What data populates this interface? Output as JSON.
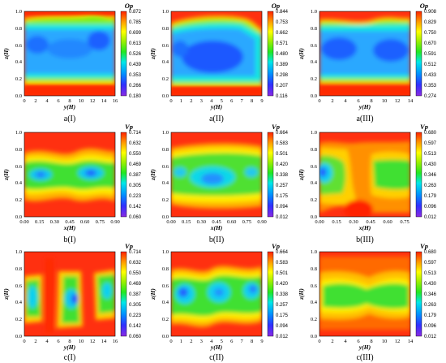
{
  "chart_data": [
    {
      "type": "heatmap",
      "caption": "a(I)",
      "xlabel": "y(H)",
      "ylabel": "z(H)",
      "colorbar_title": "Op",
      "x_ticks": [
        "0",
        "2",
        "4",
        "6",
        "8",
        "10",
        "12",
        "14",
        "16"
      ],
      "xlim": [
        0,
        16
      ],
      "y_ticks": [
        "0.0",
        "0.2",
        "0.4",
        "0.6",
        "0.8",
        "1.0"
      ],
      "ylim": [
        0,
        1.0
      ],
      "colorbar_ticks": [
        "0.872",
        "0.785",
        "0.699",
        "0.613",
        "0.526",
        "0.439",
        "0.353",
        "0.266",
        "0.180"
      ],
      "clim": [
        0.18,
        0.872
      ]
    },
    {
      "type": "heatmap",
      "caption": "a(II)",
      "xlabel": "y(H)",
      "ylabel": "z(H)",
      "colorbar_title": "Op",
      "x_ticks": [
        "0",
        "1",
        "2",
        "3",
        "4",
        "5",
        "6",
        "7",
        "8",
        "9"
      ],
      "xlim": [
        0,
        9
      ],
      "y_ticks": [
        "0.0",
        "0.2",
        "0.4",
        "0.6",
        "0.8",
        "1.0"
      ],
      "ylim": [
        0,
        1.0
      ],
      "colorbar_ticks": [
        "0.844",
        "0.753",
        "0.662",
        "0.571",
        "0.480",
        "0.389",
        "0.298",
        "0.207",
        "0.116"
      ],
      "clim": [
        0.116,
        0.844
      ]
    },
    {
      "type": "heatmap",
      "caption": "a(III)",
      "xlabel": "y(H)",
      "ylabel": "z(H)",
      "colorbar_title": "Op",
      "x_ticks": [
        "0",
        "2",
        "4",
        "6",
        "8",
        "10",
        "12",
        "14"
      ],
      "xlim": [
        0,
        14
      ],
      "y_ticks": [
        "0.0",
        "0.2",
        "0.4",
        "0.6",
        "0.8",
        "1.0"
      ],
      "ylim": [
        0,
        1.0
      ],
      "colorbar_ticks": [
        "0.908",
        "0.829",
        "0.750",
        "0.670",
        "0.591",
        "0.512",
        "0.433",
        "0.353",
        "0.274"
      ],
      "clim": [
        0.274,
        0.908
      ]
    },
    {
      "type": "heatmap",
      "caption": "b(I)",
      "xlabel": "x(H)",
      "ylabel": "z(H)",
      "colorbar_title": "Vp",
      "x_ticks": [
        "0.00",
        "0.15",
        "0.30",
        "0.45",
        "0.60",
        "0.75",
        "0.90"
      ],
      "xlim": [
        0,
        0.9
      ],
      "y_ticks": [
        "0.0",
        "0.2",
        "0.4",
        "0.6",
        "0.8",
        "1.0"
      ],
      "ylim": [
        0,
        1.0
      ],
      "colorbar_ticks": [
        "0.714",
        "0.632",
        "0.550",
        "0.469",
        "0.387",
        "0.305",
        "0.223",
        "0.142",
        "0.060"
      ],
      "clim": [
        0.06,
        0.714
      ]
    },
    {
      "type": "heatmap",
      "caption": "b(II)",
      "xlabel": "x(H)",
      "ylabel": "z(H)",
      "colorbar_title": "Vp",
      "x_ticks": [
        "0.00",
        "0.15",
        "0.30",
        "0.45",
        "0.60",
        "0.75",
        "0.90"
      ],
      "xlim": [
        0,
        0.9
      ],
      "y_ticks": [
        "0.0",
        "0.2",
        "0.4",
        "0.6",
        "0.8",
        "1.0"
      ],
      "ylim": [
        0,
        1.0
      ],
      "colorbar_ticks": [
        "0.664",
        "0.583",
        "0.501",
        "0.420",
        "0.338",
        "0.257",
        "0.175",
        "0.094",
        "0.012"
      ],
      "clim": [
        0.012,
        0.664
      ]
    },
    {
      "type": "heatmap",
      "caption": "b(III)",
      "xlabel": "x(H)",
      "ylabel": "z(H)",
      "colorbar_title": "Vp",
      "x_ticks": [
        "0.00",
        "0.15",
        "0.30",
        "0.45",
        "0.60",
        "0.75"
      ],
      "xlim": [
        0,
        0.8
      ],
      "y_ticks": [
        "0.0",
        "0.2",
        "0.4",
        "0.6",
        "0.8",
        "1.0"
      ],
      "ylim": [
        0,
        1.0
      ],
      "colorbar_ticks": [
        "0.680",
        "0.597",
        "0.513",
        "0.430",
        "0.346",
        "0.263",
        "0.179",
        "0.096",
        "0.012"
      ],
      "clim": [
        0.012,
        0.68
      ]
    },
    {
      "type": "heatmap",
      "caption": "c(I)",
      "xlabel": "y(H)",
      "ylabel": "z(H)",
      "colorbar_title": "Vp",
      "x_ticks": [
        "0",
        "2",
        "4",
        "6",
        "8",
        "10",
        "12",
        "14",
        "16"
      ],
      "xlim": [
        0,
        16
      ],
      "y_ticks": [
        "0.0",
        "0.2",
        "0.4",
        "0.6",
        "0.8",
        "1.0"
      ],
      "ylim": [
        0,
        1.0
      ],
      "colorbar_ticks": [
        "0.714",
        "0.632",
        "0.550",
        "0.469",
        "0.387",
        "0.305",
        "0.223",
        "0.142",
        "0.060"
      ],
      "clim": [
        0.06,
        0.714
      ]
    },
    {
      "type": "heatmap",
      "caption": "c(II)",
      "xlabel": "y(H)",
      "ylabel": "z(H)",
      "colorbar_title": "Vp",
      "x_ticks": [
        "0",
        "1",
        "2",
        "3",
        "4",
        "5",
        "6",
        "7",
        "8",
        "9"
      ],
      "xlim": [
        0,
        9
      ],
      "y_ticks": [
        "0.0",
        "0.2",
        "0.4",
        "0.6",
        "0.8",
        "1.0"
      ],
      "ylim": [
        0,
        1.0
      ],
      "colorbar_ticks": [
        "0.664",
        "0.583",
        "0.501",
        "0.420",
        "0.338",
        "0.257",
        "0.175",
        "0.094",
        "0.012"
      ],
      "clim": [
        0.012,
        0.664
      ]
    },
    {
      "type": "heatmap",
      "caption": "c(III)",
      "xlabel": "y(H)",
      "ylabel": "z(H)",
      "colorbar_title": "Vp",
      "x_ticks": [
        "0",
        "2",
        "4",
        "6",
        "8",
        "10",
        "12",
        "14"
      ],
      "xlim": [
        0,
        14
      ],
      "y_ticks": [
        "0.0",
        "0.2",
        "0.4",
        "0.6",
        "0.8",
        "1.0"
      ],
      "ylim": [
        0,
        1.0
      ],
      "colorbar_ticks": [
        "0.680",
        "0.597",
        "0.513",
        "0.430",
        "0.346",
        "0.263",
        "0.179",
        "0.096",
        "0.012"
      ],
      "clim": [
        0.012,
        0.68
      ]
    }
  ]
}
